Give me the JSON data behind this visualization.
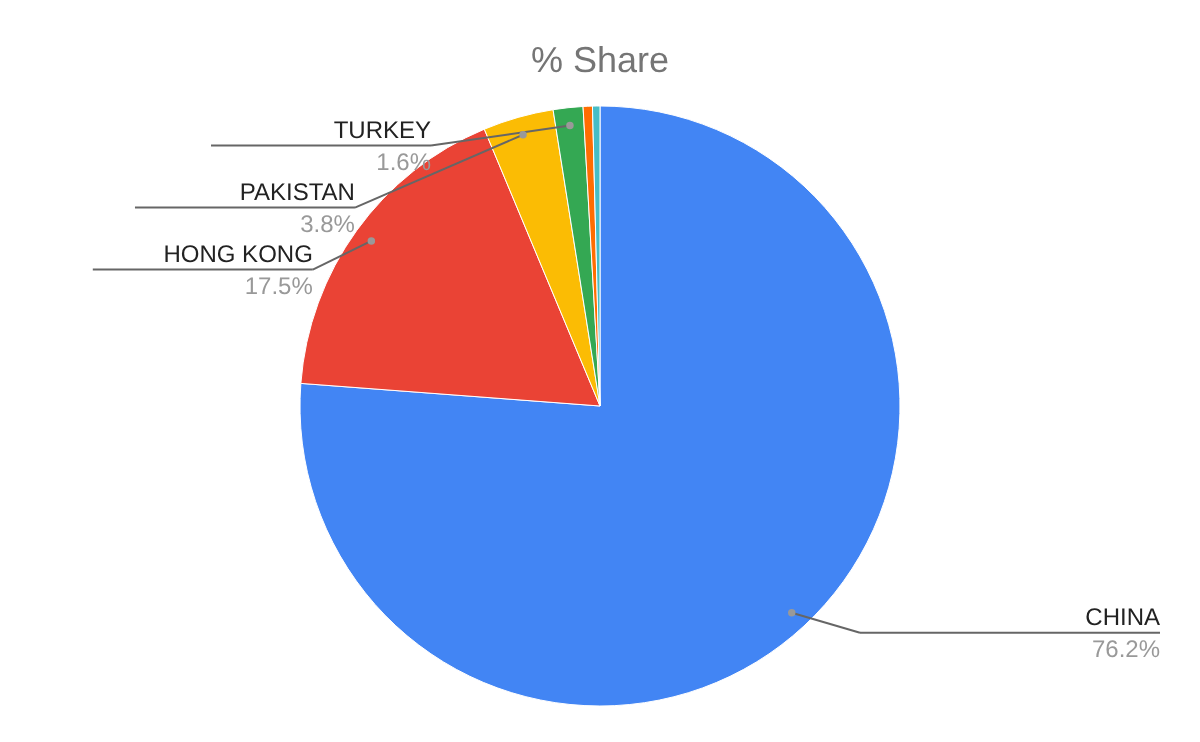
{
  "chart_data": {
    "type": "pie",
    "title": "% Share",
    "categories": [
      "CHINA",
      "HONG KONG",
      "PAKISTAN",
      "TURKEY",
      null,
      null
    ],
    "values": [
      76.2,
      17.5,
      3.8,
      1.6,
      0.5,
      0.4
    ],
    "colors": [
      "#4285f4",
      "#ea4335",
      "#fbbc04",
      "#34a853",
      "#ff6d01",
      "#46bdc6"
    ],
    "value_labels": [
      "76.2%",
      "17.5%",
      "3.8%",
      "1.6%",
      null,
      null
    ]
  }
}
